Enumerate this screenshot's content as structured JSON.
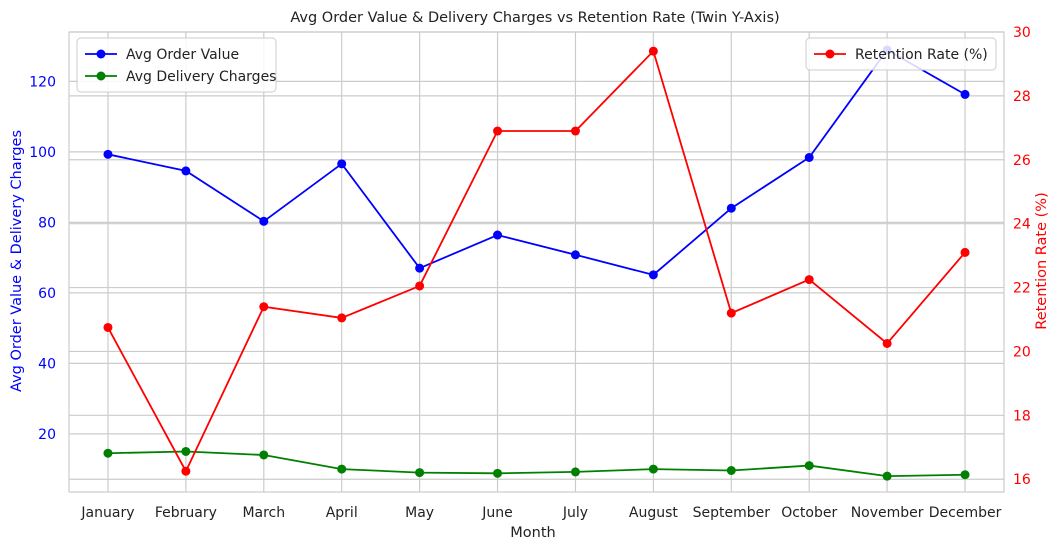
{
  "chart_data": {
    "type": "line",
    "title": "Avg Order Value & Delivery Charges vs Retention Rate (Twin Y-Axis)",
    "xlabel": "Month",
    "ylabel_left": "Avg Order Value & Delivery Charges",
    "ylabel_right": "Retention Rate (%)",
    "categories": [
      "January",
      "February",
      "March",
      "April",
      "May",
      "June",
      "July",
      "August",
      "September",
      "October",
      "November",
      "December"
    ],
    "left_axis": {
      "ylim": [
        3.5,
        134
      ],
      "ticks": [
        20,
        40,
        60,
        80,
        100,
        120
      ],
      "color": "#0000ff"
    },
    "right_axis": {
      "ylim": [
        15.6,
        30
      ],
      "ticks": [
        16,
        18,
        20,
        22,
        24,
        26,
        28,
        30
      ],
      "color": "#ff0000"
    },
    "grid": true,
    "series": [
      {
        "name": "Avg Order Value",
        "axis": "left",
        "color": "#0000ff",
        "values": [
          99.3,
          94.6,
          80.3,
          96.6,
          67.0,
          76.4,
          70.8,
          65.1,
          84.0,
          98.4,
          128.9,
          116.3
        ]
      },
      {
        "name": "Avg Delivery Charges",
        "axis": "left",
        "color": "#008000",
        "values": [
          14.5,
          15.0,
          14.0,
          10.0,
          9.0,
          8.8,
          9.2,
          10.0,
          9.6,
          11.0,
          8.0,
          8.4
        ]
      },
      {
        "name": "Retention Rate (%)",
        "axis": "right",
        "color": "#ff0000",
        "values": [
          20.75,
          16.25,
          21.4,
          21.05,
          22.05,
          26.9,
          26.9,
          29.4,
          21.2,
          22.25,
          20.25,
          23.1
        ]
      }
    ],
    "legends": [
      {
        "position": "top-left",
        "entries": [
          "Avg Order Value",
          "Avg Delivery Charges"
        ]
      },
      {
        "position": "top-right",
        "entries": [
          "Retention Rate (%)"
        ]
      }
    ]
  }
}
